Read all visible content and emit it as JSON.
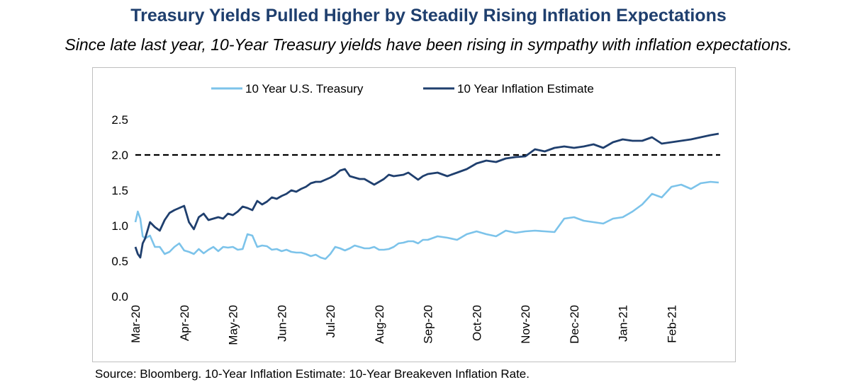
{
  "title": "Treasury Yields Pulled Higher by Steadily Rising Inflation Expectations",
  "subtitle": "Since late last year, 10-Year Treasury yields have been rising in sympathy with inflation expectations.",
  "source": "Source: Bloomberg. 10-Year Inflation Estimate: 10-Year Breakeven Inflation Rate.",
  "colors": {
    "title": "#1f3f6e",
    "treasury": "#7cc3ea",
    "inflation": "#1f3f6e",
    "reference": "#000000"
  },
  "chart_data": {
    "type": "line",
    "xlabel": "",
    "ylabel": "",
    "ylim": [
      0.0,
      2.5
    ],
    "yticks": [
      "0.0",
      "0.5",
      "1.0",
      "1.5",
      "2.0",
      "2.5"
    ],
    "xticks": [
      "Mar-20",
      "Apr-20",
      "May-20",
      "Jun-20",
      "Jul-20",
      "Aug-20",
      "Sep-20",
      "Oct-20",
      "Nov-20",
      "Dec-20",
      "Jan-21",
      "Feb-21"
    ],
    "xlim": [
      0,
      12
    ],
    "grid": false,
    "legend": "top-center",
    "reference_line": {
      "y": 2.0,
      "style": "dashed"
    },
    "series": [
      {
        "name": "10 Year U.S. Treasury",
        "x": [
          0,
          0.05,
          0.1,
          0.15,
          0.2,
          0.3,
          0.4,
          0.5,
          0.6,
          0.7,
          0.8,
          0.9,
          1.0,
          1.1,
          1.2,
          1.3,
          1.4,
          1.5,
          1.6,
          1.7,
          1.8,
          1.9,
          2.0,
          2.1,
          2.2,
          2.3,
          2.4,
          2.5,
          2.6,
          2.7,
          2.8,
          2.9,
          3.0,
          3.1,
          3.2,
          3.3,
          3.4,
          3.5,
          3.6,
          3.7,
          3.8,
          3.9,
          4.0,
          4.1,
          4.2,
          4.3,
          4.4,
          4.5,
          4.6,
          4.7,
          4.8,
          4.9,
          5.0,
          5.1,
          5.2,
          5.3,
          5.4,
          5.5,
          5.6,
          5.7,
          5.8,
          5.9,
          6.0,
          6.2,
          6.4,
          6.6,
          6.8,
          7.0,
          7.2,
          7.4,
          7.6,
          7.8,
          8.0,
          8.2,
          8.4,
          8.6,
          8.8,
          9.0,
          9.2,
          9.4,
          9.6,
          9.8,
          10.0,
          10.2,
          10.4,
          10.6,
          10.8,
          11.0,
          11.2,
          11.4,
          11.6,
          11.8,
          11.97
        ],
        "values": [
          1.05,
          1.2,
          1.1,
          0.85,
          0.82,
          0.86,
          0.7,
          0.7,
          0.6,
          0.63,
          0.7,
          0.75,
          0.65,
          0.63,
          0.6,
          0.67,
          0.61,
          0.66,
          0.7,
          0.64,
          0.7,
          0.69,
          0.7,
          0.66,
          0.67,
          0.88,
          0.86,
          0.7,
          0.72,
          0.71,
          0.66,
          0.67,
          0.64,
          0.66,
          0.63,
          0.62,
          0.62,
          0.6,
          0.57,
          0.59,
          0.55,
          0.53,
          0.6,
          0.7,
          0.68,
          0.65,
          0.68,
          0.72,
          0.7,
          0.68,
          0.68,
          0.7,
          0.66,
          0.66,
          0.67,
          0.7,
          0.75,
          0.76,
          0.78,
          0.78,
          0.75,
          0.8,
          0.8,
          0.85,
          0.83,
          0.8,
          0.88,
          0.92,
          0.88,
          0.85,
          0.93,
          0.9,
          0.92,
          0.93,
          0.92,
          0.91,
          1.1,
          1.12,
          1.07,
          1.05,
          1.03,
          1.1,
          1.12,
          1.2,
          1.3,
          1.45,
          1.4,
          1.55,
          1.58,
          1.52,
          1.6,
          1.62,
          1.61
        ]
      },
      {
        "name": "10 Year Inflation Estimate",
        "x": [
          0,
          0.05,
          0.1,
          0.15,
          0.2,
          0.3,
          0.4,
          0.5,
          0.6,
          0.7,
          0.8,
          0.9,
          1.0,
          1.1,
          1.2,
          1.3,
          1.4,
          1.5,
          1.6,
          1.7,
          1.8,
          1.9,
          2.0,
          2.1,
          2.2,
          2.3,
          2.4,
          2.5,
          2.6,
          2.7,
          2.8,
          2.9,
          3.0,
          3.1,
          3.2,
          3.3,
          3.4,
          3.5,
          3.6,
          3.7,
          3.8,
          3.9,
          4.0,
          4.1,
          4.2,
          4.3,
          4.4,
          4.5,
          4.6,
          4.7,
          4.8,
          4.9,
          5.0,
          5.1,
          5.2,
          5.3,
          5.4,
          5.5,
          5.6,
          5.7,
          5.8,
          5.9,
          6.0,
          6.2,
          6.4,
          6.6,
          6.8,
          7.0,
          7.2,
          7.4,
          7.6,
          7.8,
          8.0,
          8.2,
          8.4,
          8.6,
          8.8,
          9.0,
          9.2,
          9.4,
          9.6,
          9.8,
          10.0,
          10.2,
          10.4,
          10.6,
          10.8,
          11.0,
          11.2,
          11.4,
          11.6,
          11.8,
          11.97
        ],
        "values": [
          0.7,
          0.6,
          0.55,
          0.75,
          0.82,
          1.05,
          0.98,
          0.93,
          1.08,
          1.18,
          1.22,
          1.25,
          1.28,
          1.05,
          0.95,
          1.12,
          1.17,
          1.08,
          1.1,
          1.12,
          1.1,
          1.17,
          1.15,
          1.2,
          1.27,
          1.25,
          1.22,
          1.35,
          1.3,
          1.34,
          1.4,
          1.38,
          1.42,
          1.45,
          1.5,
          1.48,
          1.52,
          1.55,
          1.6,
          1.62,
          1.62,
          1.65,
          1.68,
          1.72,
          1.78,
          1.8,
          1.7,
          1.68,
          1.66,
          1.66,
          1.62,
          1.58,
          1.62,
          1.66,
          1.72,
          1.7,
          1.71,
          1.72,
          1.75,
          1.7,
          1.65,
          1.7,
          1.73,
          1.75,
          1.7,
          1.75,
          1.8,
          1.88,
          1.92,
          1.9,
          1.95,
          1.97,
          1.98,
          2.08,
          2.05,
          2.1,
          2.12,
          2.1,
          2.12,
          2.15,
          2.1,
          2.18,
          2.22,
          2.2,
          2.2,
          2.25,
          2.16,
          2.18,
          2.2,
          2.22,
          2.25,
          2.28,
          2.3
        ]
      }
    ]
  }
}
